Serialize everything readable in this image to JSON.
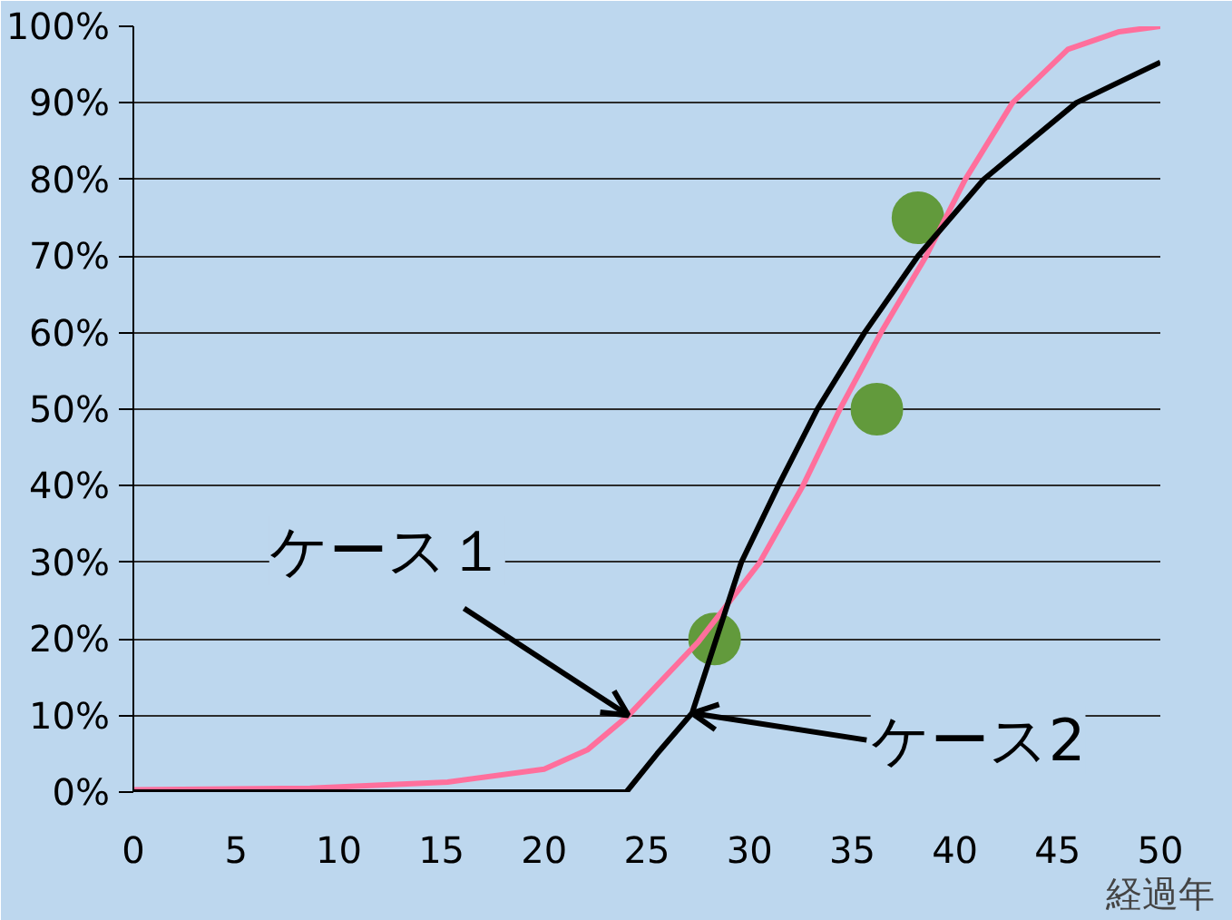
{
  "chart_data": {
    "type": "line",
    "xlabel": "経過年",
    "xlim": [
      0,
      50
    ],
    "xticks": [
      0,
      5,
      10,
      15,
      20,
      25,
      30,
      35,
      40,
      45,
      50
    ],
    "ylim": [
      0,
      100
    ],
    "yticks": [
      {
        "value": 0,
        "label": "0%"
      },
      {
        "value": 10,
        "label": "10%"
      },
      {
        "value": 20,
        "label": "20%"
      },
      {
        "value": 30,
        "label": "30%"
      },
      {
        "value": 40,
        "label": "40%"
      },
      {
        "value": 50,
        "label": "50%"
      },
      {
        "value": 60,
        "label": "60%"
      },
      {
        "value": 70,
        "label": "70%"
      },
      {
        "value": 80,
        "label": "80%"
      },
      {
        "value": 90,
        "label": "90%"
      },
      {
        "value": 100,
        "label": "100%"
      }
    ],
    "grid": "y",
    "annotations": [
      {
        "text": "ケース１",
        "x": 24.1,
        "y": 10
      },
      {
        "text": "ケース2",
        "x": 27.2,
        "y": 10.3
      }
    ],
    "series": [
      {
        "color": "#ff6f9c",
        "x": [
          0,
          8.6,
          15.3,
          20,
          22.1,
          24.1,
          27.5,
          30.5,
          32.6,
          34.4,
          36.4,
          38.6,
          40.5,
          42.8,
          45.5,
          48,
          50
        ],
        "values": [
          0.3,
          0.5,
          1.3,
          3,
          5.5,
          10,
          19.6,
          30,
          40,
          50,
          60,
          70,
          80,
          90,
          97,
          99.3,
          100
        ]
      },
      {
        "color": "#000000",
        "x": [
          0,
          24,
          25.5,
          27.2,
          29.6,
          31.4,
          33.3,
          35.6,
          38.2,
          41.4,
          45.9,
          50
        ],
        "values": [
          0,
          0,
          5,
          10.3,
          30,
          40,
          50,
          60,
          70,
          80,
          90,
          95.3
        ]
      },
      {
        "type": "scatter",
        "color": "#629a3c",
        "marker": "circle",
        "x": [
          28.3,
          36.2,
          38.2
        ],
        "values": [
          20,
          50,
          75
        ]
      }
    ]
  }
}
